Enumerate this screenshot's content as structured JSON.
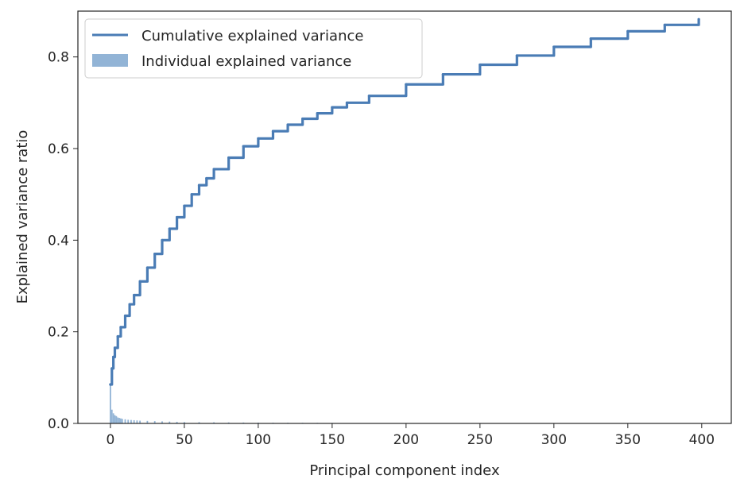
{
  "chart_data": {
    "type": "line",
    "title": "",
    "xlabel": "Principal component index",
    "ylabel": "Explained variance ratio",
    "xlim": [
      -22,
      420
    ],
    "ylim": [
      0,
      0.9
    ],
    "xticks": [
      0,
      50,
      100,
      150,
      200,
      250,
      300,
      350,
      400
    ],
    "yticks": [
      0.0,
      0.2,
      0.4,
      0.6,
      0.8
    ],
    "xtick_labels": [
      "0",
      "50",
      "100",
      "150",
      "200",
      "250",
      "300",
      "350",
      "400"
    ],
    "ytick_labels": [
      "0.0",
      "0.2",
      "0.4",
      "0.6",
      "0.8"
    ],
    "grid": false,
    "legend_position": "top-left",
    "series": [
      {
        "name": "Cumulative explained variance",
        "kind": "step-line",
        "color": "#4a7cb5",
        "x": [
          0,
          1,
          2,
          3,
          5,
          7,
          10,
          13,
          16,
          20,
          25,
          30,
          35,
          40,
          45,
          50,
          55,
          60,
          65,
          70,
          80,
          90,
          100,
          110,
          120,
          130,
          140,
          150,
          160,
          175,
          200,
          225,
          250,
          275,
          300,
          325,
          350,
          375,
          398
        ],
        "y": [
          0.085,
          0.12,
          0.145,
          0.165,
          0.19,
          0.21,
          0.235,
          0.26,
          0.28,
          0.31,
          0.34,
          0.37,
          0.4,
          0.425,
          0.45,
          0.475,
          0.5,
          0.52,
          0.535,
          0.555,
          0.58,
          0.605,
          0.622,
          0.638,
          0.652,
          0.665,
          0.677,
          0.69,
          0.7,
          0.715,
          0.74,
          0.762,
          0.783,
          0.803,
          0.822,
          0.84,
          0.856,
          0.87,
          0.882
        ]
      },
      {
        "name": "Individual explained variance",
        "kind": "bar",
        "color": "#92b4d6",
        "x": [
          0,
          1,
          2,
          3,
          4,
          5,
          6,
          7,
          8,
          10,
          12,
          14,
          16,
          18,
          20,
          25,
          30,
          35,
          40,
          45,
          50,
          60,
          70,
          80,
          90,
          100,
          110,
          120,
          130,
          140,
          150
        ],
        "y": [
          0.085,
          0.03,
          0.022,
          0.018,
          0.016,
          0.013,
          0.012,
          0.011,
          0.01,
          0.009,
          0.008,
          0.0075,
          0.007,
          0.0065,
          0.006,
          0.0055,
          0.005,
          0.0045,
          0.004,
          0.0035,
          0.003,
          0.0028,
          0.0025,
          0.0022,
          0.002,
          0.0018,
          0.0016,
          0.0015,
          0.0014,
          0.0013,
          0.0012
        ]
      }
    ]
  }
}
